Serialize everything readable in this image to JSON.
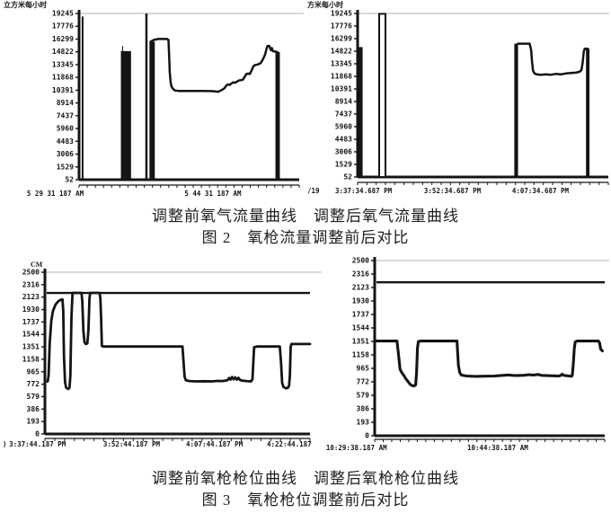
{
  "figure2": {
    "caption_line1": "调整前氧气流量曲线　调整后氧气流量曲线",
    "caption_line2": "图 2　氧枪流量调整前后对比"
  },
  "figure3": {
    "caption_line1": "调整前氧枪枪位曲线　调整后氧枪枪位曲线",
    "caption_line2": "图 3　氧枪枪位调整前后对比"
  },
  "colors": {
    "ink": "#141414",
    "gridline": "#b2b2b2",
    "background": "#ffffff"
  },
  "chart_data": [
    {
      "type": "line",
      "title": "调整前氧气流量曲线",
      "unit_label": "立方米每小时",
      "ylim": [
        52,
        19245
      ],
      "y_ticks": [
        19245,
        17776,
        16299,
        14822,
        13345,
        11868,
        10391,
        8914,
        7437,
        5960,
        4483,
        3006,
        1529,
        52
      ],
      "x_ticklabels": [
        {
          "text": "5 29 31 187 AM",
          "pos": 0.088
        },
        {
          "text": "5 44 31 187 AM",
          "pos": 0.604
        }
      ],
      "top_gridline": true,
      "ref_line": null,
      "bars": [
        {
          "x0": 0.19,
          "x1": 0.236,
          "v": 14900
        },
        {
          "x0": 0.325,
          "x1": 0.344,
          "v": 16000
        },
        {
          "x0": 0.892,
          "x1": 0.912,
          "v": 14800
        }
      ],
      "spikes": [
        {
          "x": 0.016,
          "v": 18900,
          "w": 2
        },
        {
          "x": 0.198,
          "v": 15500,
          "w": 1
        },
        {
          "x": 0.306,
          "v": 19245,
          "w": 2.5
        }
      ],
      "outline_bars": [],
      "series": [
        {
          "name": "氧气流量",
          "points": [
            [
              0.325,
              52
            ],
            [
              0.325,
              16000
            ],
            [
              0.34,
              16200
            ],
            [
              0.36,
              16300
            ],
            [
              0.4,
              16300
            ],
            [
              0.406,
              16200
            ],
            [
              0.409,
              14500
            ],
            [
              0.412,
              12500
            ],
            [
              0.416,
              11300
            ],
            [
              0.42,
              10800
            ],
            [
              0.428,
              10500
            ],
            [
              0.436,
              10350
            ],
            [
              0.45,
              10300
            ],
            [
              0.5,
              10300
            ],
            [
              0.55,
              10300
            ],
            [
              0.6,
              10280
            ],
            [
              0.62,
              10250
            ],
            [
              0.63,
              10200
            ],
            [
              0.64,
              10300
            ],
            [
              0.65,
              10450
            ],
            [
              0.66,
              10600
            ],
            [
              0.668,
              10900
            ],
            [
              0.676,
              11050
            ],
            [
              0.684,
              11000
            ],
            [
              0.692,
              11150
            ],
            [
              0.7,
              11300
            ],
            [
              0.708,
              11250
            ],
            [
              0.716,
              11350
            ],
            [
              0.724,
              11500
            ],
            [
              0.736,
              11550
            ],
            [
              0.744,
              11600
            ],
            [
              0.752,
              11900
            ],
            [
              0.76,
              12250
            ],
            [
              0.77,
              12300
            ],
            [
              0.776,
              12250
            ],
            [
              0.784,
              12700
            ],
            [
              0.792,
              13150
            ],
            [
              0.8,
              13300
            ],
            [
              0.812,
              13350
            ],
            [
              0.824,
              13500
            ],
            [
              0.832,
              13800
            ],
            [
              0.84,
              14200
            ],
            [
              0.846,
              14600
            ],
            [
              0.852,
              15200
            ],
            [
              0.856,
              15500
            ],
            [
              0.864,
              15500
            ],
            [
              0.868,
              15200
            ],
            [
              0.872,
              15000
            ],
            [
              0.876,
              15250
            ],
            [
              0.88,
              14900
            ],
            [
              0.9,
              14800
            ]
          ]
        }
      ]
    },
    {
      "type": "line",
      "title": "调整后氧气流量曲线",
      "unit_label": "方米每小时",
      "ylim": [
        52,
        19245
      ],
      "y_ticks": [
        19245,
        17776,
        16299,
        14822,
        13345,
        11868,
        10391,
        8914,
        7437,
        5960,
        4483,
        3006,
        1529,
        52
      ],
      "x_ticklabels": [
        {
          "text": "/19",
          "pos": 0.006
        },
        {
          "text": "3:37:34.687 PM",
          "pos": 0.097
        },
        {
          "text": "3:52:34.687 PM",
          "pos": 0.388
        },
        {
          "text": "4:07:34.687 PM",
          "pos": 0.676
        }
      ],
      "top_gridline": true,
      "ref_line": null,
      "bars": [
        {
          "x0": 0.0,
          "x1": 0.02,
          "v": 15300
        },
        {
          "x0": 0.625,
          "x1": 0.64,
          "v": 15700
        },
        {
          "x0": 0.911,
          "x1": 0.925,
          "v": 15100
        }
      ],
      "spikes": [],
      "outline_bars": [
        {
          "x0": 0.086,
          "x1": 0.111,
          "v": 19200
        }
      ],
      "series": [
        {
          "name": "氧气流量",
          "points": [
            [
              0.639,
              15700
            ],
            [
              0.686,
              15700
            ],
            [
              0.692,
              15000
            ],
            [
              0.696,
              13500
            ],
            [
              0.7,
              12500
            ],
            [
              0.706,
              12200
            ],
            [
              0.715,
              12100
            ],
            [
              0.73,
              12050
            ],
            [
              0.75,
              12100
            ],
            [
              0.77,
              12050
            ],
            [
              0.79,
              12150
            ],
            [
              0.81,
              12100
            ],
            [
              0.83,
              12200
            ],
            [
              0.85,
              12250
            ],
            [
              0.87,
              12300
            ],
            [
              0.885,
              12400
            ],
            [
              0.893,
              12600
            ],
            [
              0.898,
              13500
            ],
            [
              0.902,
              14800
            ],
            [
              0.906,
              15100
            ],
            [
              0.918,
              15100
            ]
          ]
        }
      ]
    },
    {
      "type": "line",
      "title": "调整前氧枪枪位曲线",
      "unit_label": "CM",
      "ylim": [
        0,
        2500
      ],
      "y_ticks": [
        2500,
        2316,
        2123,
        1930,
        1737,
        1544,
        1351,
        1158,
        965,
        772,
        579,
        386,
        193,
        0
      ],
      "x_ticklabels": [
        {
          "text": ")",
          "pos": 0.008
        },
        {
          "text": "3:37:44.187 PM",
          "pos": 0.028
        },
        {
          "text": "3:52:44.187 PM",
          "pos": 0.319
        },
        {
          "text": "4:07:44.187 PM",
          "pos": 0.575
        },
        {
          "text": "4:22:44.187",
          "pos": 0.825
        }
      ],
      "top_gridline": true,
      "ref_line": 2180,
      "bars": [],
      "spikes": [],
      "outline_bars": [],
      "series": [
        {
          "name": "氧枪枪位",
          "points": [
            [
              0.01,
              810
            ],
            [
              0.014,
              900
            ],
            [
              0.018,
              1400
            ],
            [
              0.024,
              1750
            ],
            [
              0.03,
              1900
            ],
            [
              0.04,
              2000
            ],
            [
              0.05,
              2050
            ],
            [
              0.06,
              2075
            ],
            [
              0.066,
              2080
            ],
            [
              0.069,
              1900
            ],
            [
              0.072,
              1200
            ],
            [
              0.076,
              800
            ],
            [
              0.08,
              715
            ],
            [
              0.088,
              695
            ],
            [
              0.093,
              720
            ],
            [
              0.096,
              900
            ],
            [
              0.1,
              1800
            ],
            [
              0.104,
              2180
            ],
            [
              0.138,
              2180
            ],
            [
              0.141,
              2050
            ],
            [
              0.145,
              1600
            ],
            [
              0.149,
              1420
            ],
            [
              0.154,
              1390
            ],
            [
              0.16,
              1400
            ],
            [
              0.164,
              1600
            ],
            [
              0.168,
              2100
            ],
            [
              0.171,
              2180
            ],
            [
              0.206,
              2180
            ],
            [
              0.209,
              2100
            ],
            [
              0.212,
              1800
            ],
            [
              0.215,
              1360
            ],
            [
              0.22,
              1351
            ],
            [
              0.519,
              1351
            ],
            [
              0.524,
              1050
            ],
            [
              0.527,
              880
            ],
            [
              0.532,
              830
            ],
            [
              0.545,
              818
            ],
            [
              0.57,
              812
            ],
            [
              0.6,
              815
            ],
            [
              0.63,
              812
            ],
            [
              0.65,
              820
            ],
            [
              0.67,
              818
            ],
            [
              0.688,
              830
            ],
            [
              0.695,
              865
            ],
            [
              0.7,
              840
            ],
            [
              0.706,
              880
            ],
            [
              0.712,
              845
            ],
            [
              0.718,
              875
            ],
            [
              0.724,
              840
            ],
            [
              0.73,
              868
            ],
            [
              0.736,
              835
            ],
            [
              0.744,
              825
            ],
            [
              0.76,
              818
            ],
            [
              0.778,
              812
            ],
            [
              0.783,
              850
            ],
            [
              0.786,
              1100
            ],
            [
              0.789,
              1340
            ],
            [
              0.8,
              1351
            ],
            [
              0.886,
              1351
            ],
            [
              0.891,
              1100
            ],
            [
              0.895,
              790
            ],
            [
              0.9,
              725
            ],
            [
              0.91,
              705
            ],
            [
              0.917,
              715
            ],
            [
              0.921,
              745
            ],
            [
              0.924,
              900
            ],
            [
              0.927,
              1350
            ],
            [
              0.93,
              1390
            ],
            [
              1.0,
              1390
            ]
          ]
        }
      ]
    },
    {
      "type": "line",
      "title": "调整后氧枪枪位曲线",
      "unit_label": "",
      "ylim": [
        0,
        2500
      ],
      "y_ticks": [
        2500,
        2316,
        2123,
        1930,
        1737,
        1544,
        1351,
        1158,
        965,
        772,
        579,
        386,
        193,
        0
      ],
      "x_ticklabels": [
        {
          "text": "10:29:38.187 AM",
          "pos": 0.009
        },
        {
          "text": "10:44:38.187 AM",
          "pos": 0.5
        }
      ],
      "top_gridline": true,
      "ref_line": 2190,
      "bars": [],
      "spikes": [],
      "outline_bars": [],
      "series": [
        {
          "name": "氧枪枪位",
          "points": [
            [
              0.008,
              1351
            ],
            [
              0.097,
              1351
            ],
            [
              0.104,
              1150
            ],
            [
              0.11,
              950
            ],
            [
              0.118,
              900
            ],
            [
              0.127,
              860
            ],
            [
              0.134,
              820
            ],
            [
              0.141,
              790
            ],
            [
              0.148,
              760
            ],
            [
              0.154,
              735
            ],
            [
              0.161,
              718
            ],
            [
              0.171,
              710
            ],
            [
              0.178,
              725
            ],
            [
              0.182,
              900
            ],
            [
              0.186,
              1250
            ],
            [
              0.19,
              1345
            ],
            [
              0.2,
              1351
            ],
            [
              0.358,
              1351
            ],
            [
              0.364,
              1000
            ],
            [
              0.37,
              900
            ],
            [
              0.377,
              865
            ],
            [
              0.4,
              852
            ],
            [
              0.44,
              848
            ],
            [
              0.48,
              850
            ],
            [
              0.52,
              853
            ],
            [
              0.55,
              860
            ],
            [
              0.58,
              868
            ],
            [
              0.6,
              862
            ],
            [
              0.62,
              860
            ],
            [
              0.65,
              863
            ],
            [
              0.67,
              872
            ],
            [
              0.69,
              866
            ],
            [
              0.71,
              875
            ],
            [
              0.725,
              862
            ],
            [
              0.75,
              858
            ],
            [
              0.78,
              855
            ],
            [
              0.8,
              853
            ],
            [
              0.81,
              862
            ],
            [
              0.815,
              880
            ],
            [
              0.82,
              865
            ],
            [
              0.83,
              858
            ],
            [
              0.845,
              852
            ],
            [
              0.855,
              848
            ],
            [
              0.859,
              860
            ],
            [
              0.863,
              1000
            ],
            [
              0.868,
              1250
            ],
            [
              0.872,
              1340
            ],
            [
              0.88,
              1351
            ],
            [
              0.973,
              1351
            ],
            [
              0.978,
              1320
            ],
            [
              0.982,
              1240
            ],
            [
              0.99,
              1210
            ]
          ]
        }
      ]
    }
  ]
}
